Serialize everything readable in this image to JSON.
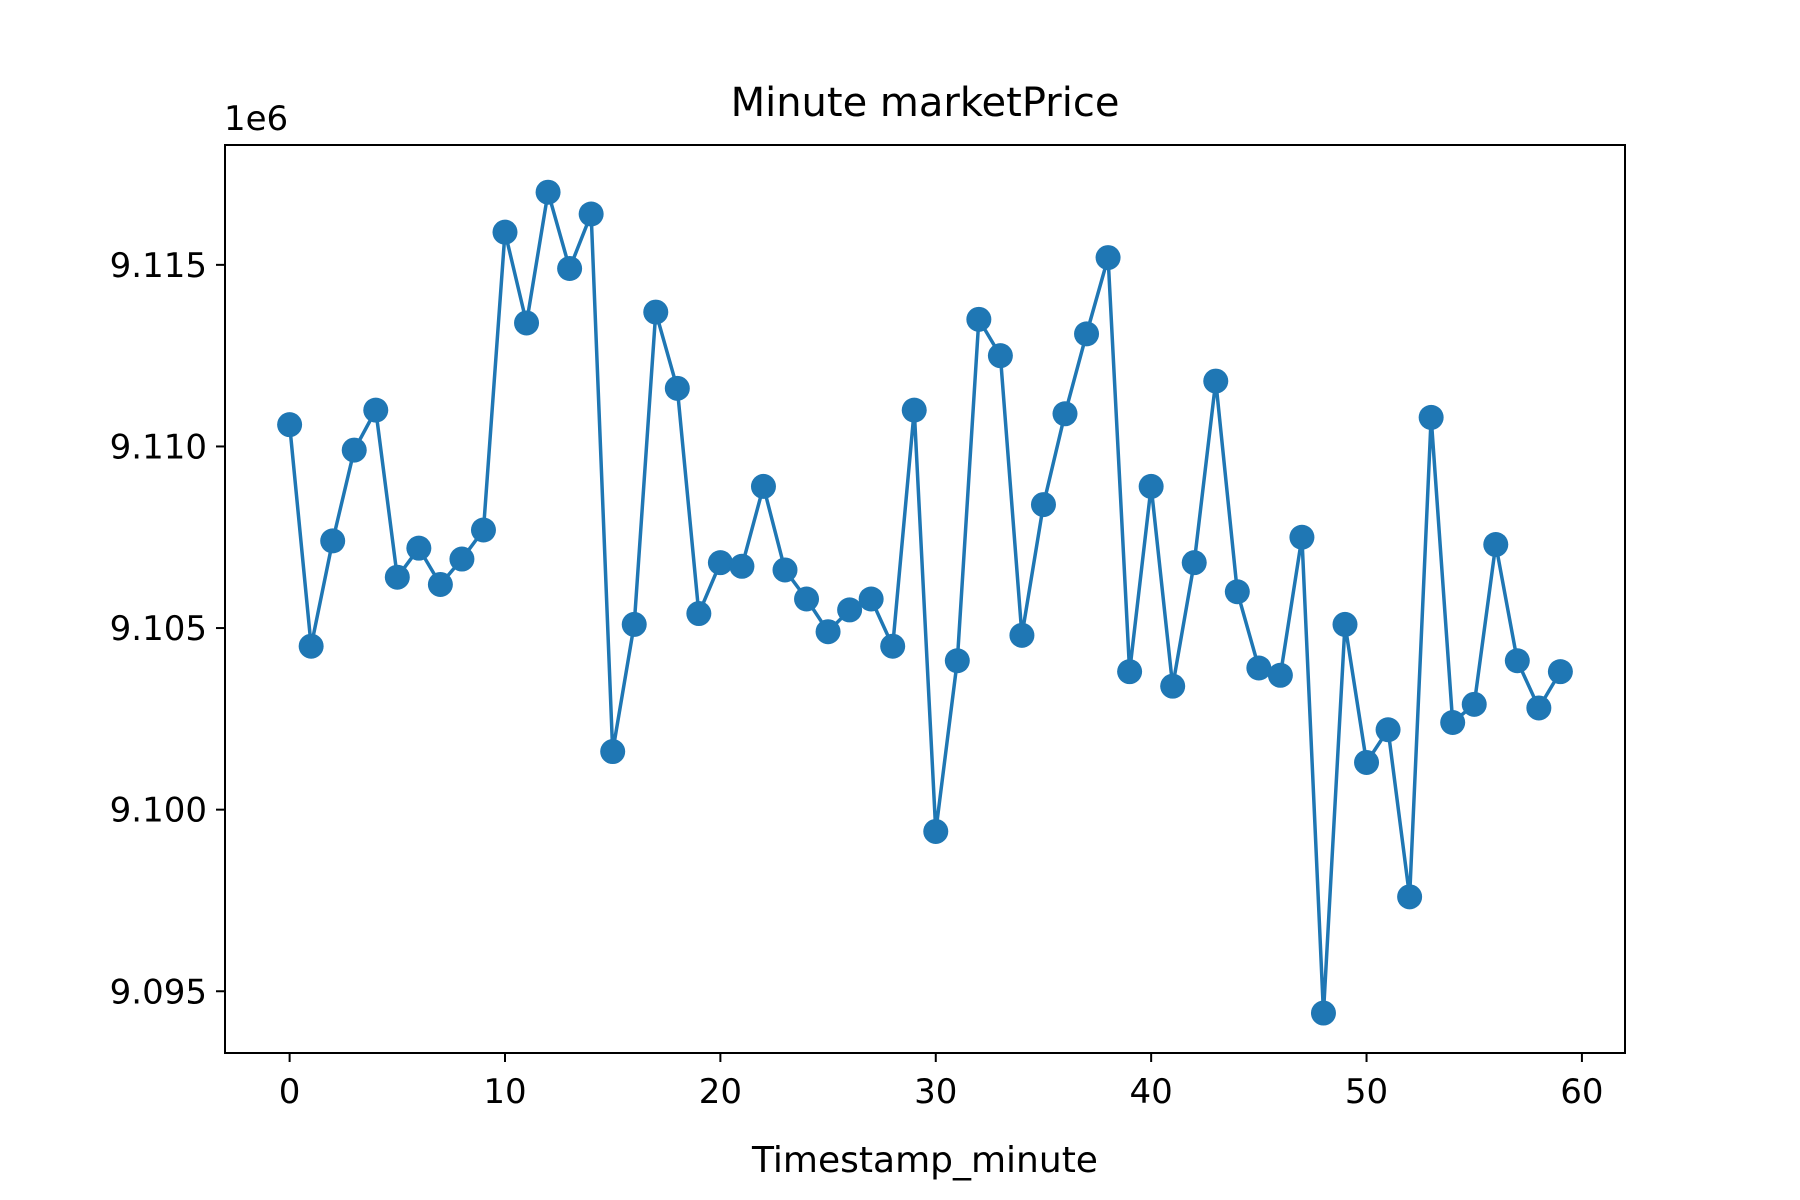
{
  "chart_data": {
    "type": "line",
    "title": "Minute marketPrice",
    "xlabel": "Timestamp_minute",
    "ylabel": "",
    "y_offset_text": "1e6",
    "xlim": [
      -3,
      62
    ],
    "ylim": [
      9.0933,
      9.1183
    ],
    "x_ticks": [
      0,
      10,
      20,
      30,
      40,
      50,
      60
    ],
    "x_tick_labels": [
      "0",
      "10",
      "20",
      "30",
      "40",
      "50",
      "60"
    ],
    "y_ticks": [
      9.095,
      9.1,
      9.105,
      9.11,
      9.115
    ],
    "y_tick_labels": [
      "9.095",
      "9.100",
      "9.105",
      "9.110",
      "9.115"
    ],
    "grid": false,
    "line_color": "#1f77b4",
    "marker": "circle",
    "series": [
      {
        "x": [
          0,
          1,
          2,
          3,
          4,
          5,
          6,
          7,
          8,
          9,
          10,
          11,
          12,
          13,
          14,
          15,
          16,
          17,
          18,
          19,
          20,
          21,
          22,
          23,
          24,
          25,
          26,
          27,
          28,
          29,
          30,
          31,
          32,
          33,
          34,
          35,
          36,
          37,
          38,
          39,
          40,
          41,
          42,
          43,
          44,
          45,
          46,
          47,
          48,
          49,
          50,
          51,
          52,
          53,
          54,
          55,
          56,
          57,
          58,
          59
        ],
        "y": [
          9.1106,
          9.1045,
          9.1074,
          9.1099,
          9.111,
          9.1064,
          9.1072,
          9.1062,
          9.1069,
          9.1077,
          9.1159,
          9.1134,
          9.117,
          9.1149,
          9.1164,
          9.1016,
          9.1051,
          9.1137,
          9.1116,
          9.1054,
          9.1068,
          9.1067,
          9.1089,
          9.1066,
          9.1058,
          9.1049,
          9.1055,
          9.1058,
          9.1045,
          9.111,
          9.0994,
          9.1041,
          9.1135,
          9.1125,
          9.1048,
          9.1084,
          9.1109,
          9.1131,
          9.1152,
          9.1038,
          9.1089,
          9.1034,
          9.1068,
          9.1118,
          9.106,
          9.1039,
          9.1037,
          9.1075,
          9.0944,
          9.1051,
          9.1013,
          9.1022,
          9.0976,
          9.1108,
          9.1024,
          9.1029,
          9.1073,
          9.1041,
          9.1028,
          9.1038
        ]
      }
    ]
  }
}
